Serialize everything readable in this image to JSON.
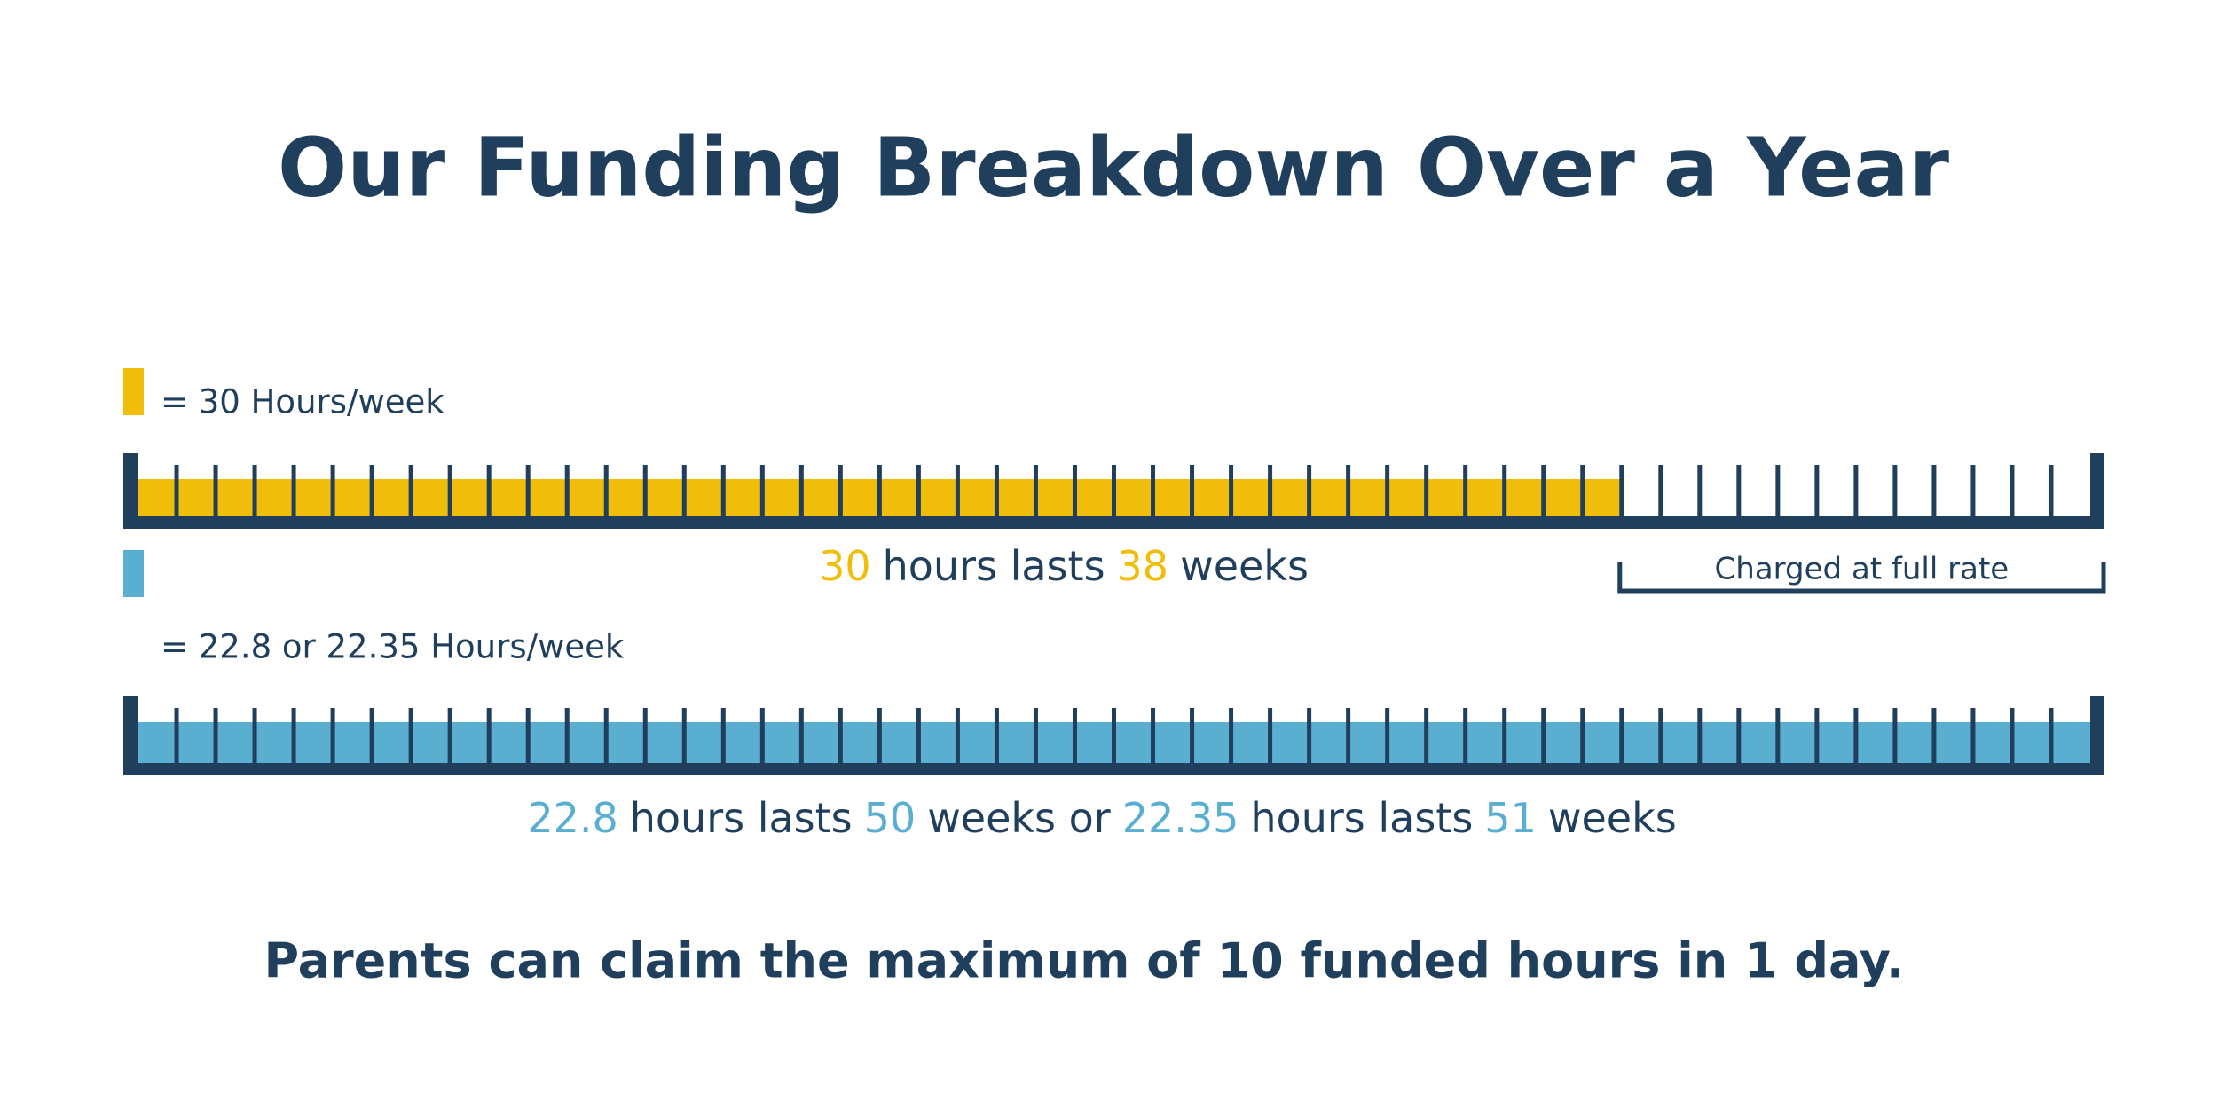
{
  "title": "Our Funding Breakdown Over a Year",
  "plans": [
    {
      "legend": "= 30 Hours/week",
      "color": "#f0bd0a",
      "caption": [
        30,
        "hours lasts",
        38,
        "weeks"
      ],
      "bracket": "Charged at full rate"
    },
    {
      "legend": "= 22.8 or 22.35 Hours/week",
      "color": "#5aaed0",
      "caption": [
        22.8,
        "hours lasts",
        50,
        "weeks or",
        22.35,
        "hours lasts",
        51,
        "weeks"
      ]
    }
  ],
  "footer": "Parents can claim the maximum of 10 funded hours in 1 day."
}
